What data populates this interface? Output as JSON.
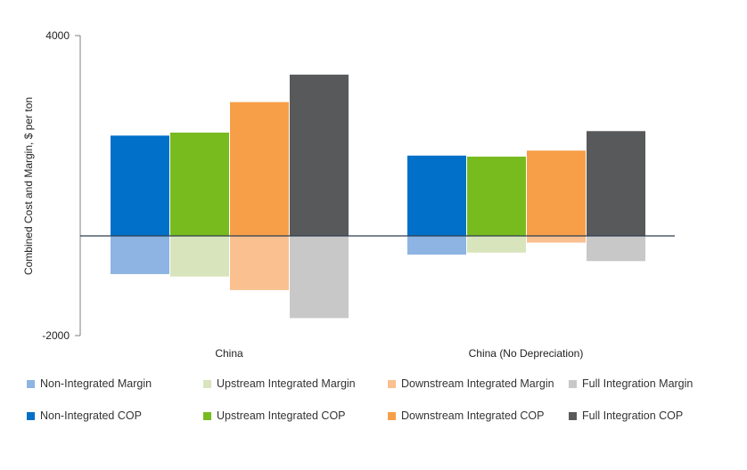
{
  "chart_data": {
    "type": "bar",
    "categories": [
      "China",
      "China (No Depreciation)"
    ],
    "ylabel": "Combined Cost and Margin, $ per ton",
    "ylim": [
      -2000,
      4000
    ],
    "yticks": [
      "4000",
      "-2000"
    ],
    "series": [
      {
        "name": "Non-Integrated COP",
        "color": "#0070C8",
        "values": [
          2000,
          1600
        ]
      },
      {
        "name": "Upstream Integrated COP",
        "color": "#78BB1E",
        "values": [
          2060,
          1580
        ]
      },
      {
        "name": "Downstream Integrated COP",
        "color": "#F79F48",
        "values": [
          2670,
          1700
        ]
      },
      {
        "name": "Full Integration COP",
        "color": "#58595B",
        "values": [
          3220,
          2090
        ]
      },
      {
        "name": "Non-Integrated Margin",
        "color": "#8DB4E2",
        "values": [
          -770,
          -380
        ]
      },
      {
        "name": "Upstream Integrated Margin",
        "color": "#D8E4BC",
        "values": [
          -820,
          -340
        ]
      },
      {
        "name": "Downstream Integrated Margin",
        "color": "#FAC090",
        "values": [
          -1090,
          -140
        ]
      },
      {
        "name": "Full Integration Margin",
        "color": "#C8C8C8",
        "values": [
          -1650,
          -510
        ]
      }
    ]
  },
  "legend": {
    "row1": [
      {
        "label": "Non-Integrated Margin",
        "color": "#8DB4E2"
      },
      {
        "label": "Upstream Integrated Margin",
        "color": "#D8E4BC"
      },
      {
        "label": "Downstream Integrated Margin",
        "color": "#FAC090"
      },
      {
        "label": "Full Integration Margin",
        "color": "#C8C8C8"
      }
    ],
    "row2": [
      {
        "label": "Non-Integrated COP",
        "color": "#0070C8"
      },
      {
        "label": "Upstream Integrated COP",
        "color": "#78BB1E"
      },
      {
        "label": "Downstream Integrated COP",
        "color": "#F79F48"
      },
      {
        "label": "Full Integration COP",
        "color": "#58595B"
      }
    ]
  }
}
